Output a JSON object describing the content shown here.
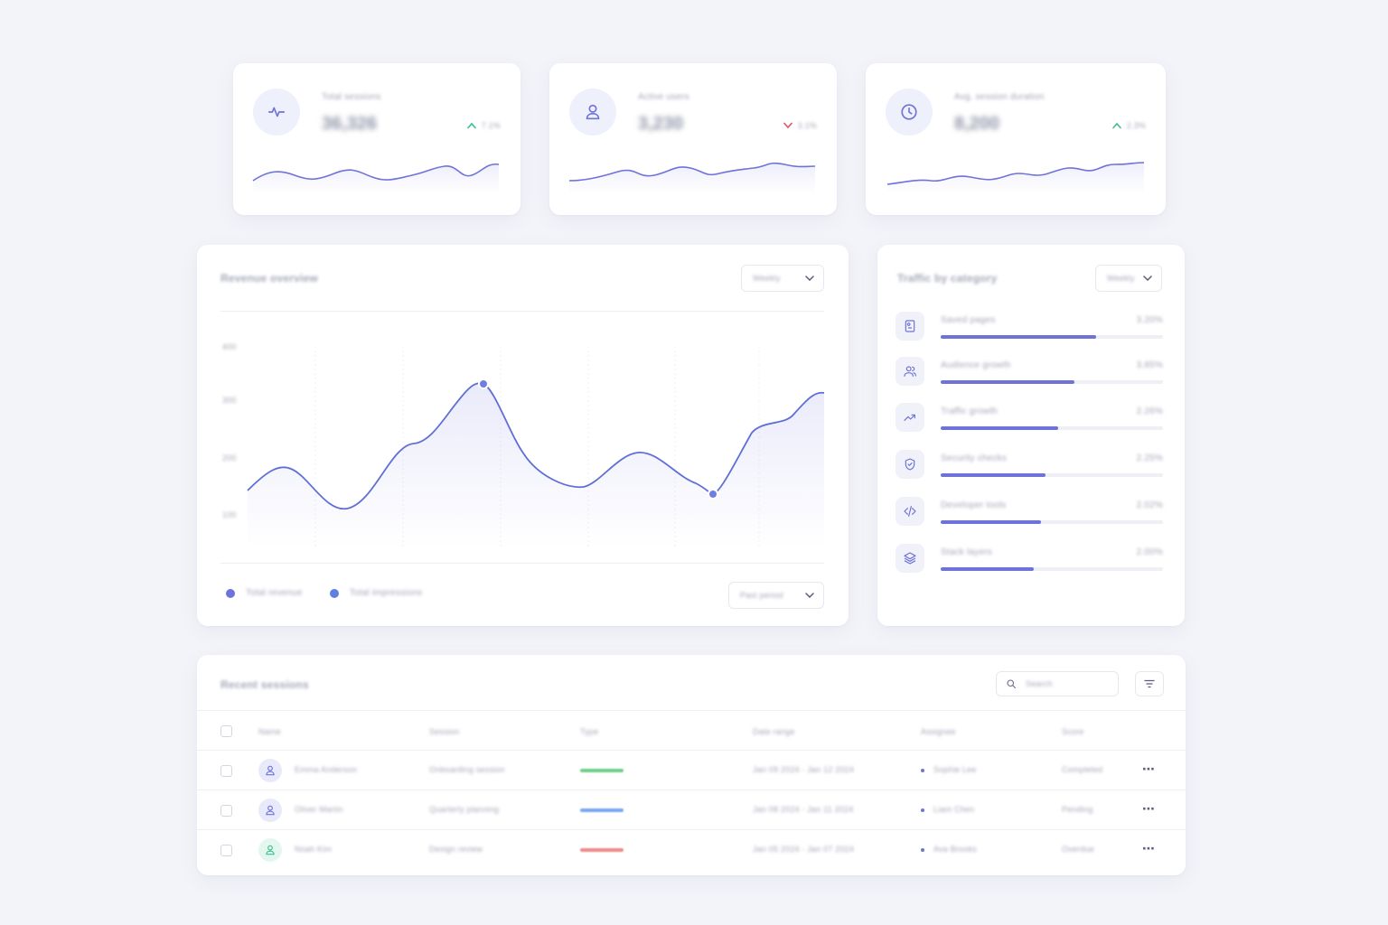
{
  "colors": {
    "accent": "#6f72d9",
    "accent_line": "#5f6fd6",
    "trend_up": "#3fbf8a",
    "trend_down": "#e0566b",
    "status_green": "#6fd08a",
    "status_blue": "#7aa8f2",
    "status_red": "#f08a8a"
  },
  "stats": [
    {
      "label": "Total sessions",
      "value": "36,326",
      "trend": "up",
      "delta": "7.1%",
      "icon": "activity-icon"
    },
    {
      "label": "Active users",
      "value": "3,230",
      "trend": "down",
      "delta": "3.1%",
      "icon": "user-icon"
    },
    {
      "label": "Avg. session duration",
      "value": "8,200",
      "trend": "up",
      "delta": "2.3%",
      "icon": "clock-icon"
    }
  ],
  "main_chart": {
    "title": "Revenue overview",
    "period_select": "Weekly",
    "compare_select": "Past period",
    "legend": [
      {
        "label": "Total revenue",
        "color": "#6f72d9"
      },
      {
        "label": "Total impressions",
        "color": "#5f7fe0"
      }
    ],
    "y_ticks": [
      "400",
      "300",
      "200",
      "100"
    ]
  },
  "categories_panel": {
    "title": "Traffic by category",
    "period_select": "Weekly",
    "items": [
      {
        "icon": "bookmark-icon",
        "label": "Saved pages",
        "pct": "3.20%",
        "fill": 0.7
      },
      {
        "icon": "users-icon",
        "label": "Audience growth",
        "pct": "3.85%",
        "fill": 0.6
      },
      {
        "icon": "trending-up-icon",
        "label": "Traffic growth",
        "pct": "2.26%",
        "fill": 0.53
      },
      {
        "icon": "shield-icon",
        "label": "Security checks",
        "pct": "2.25%",
        "fill": 0.47
      },
      {
        "icon": "code-icon",
        "label": "Developer tools",
        "pct": "2.02%",
        "fill": 0.45
      },
      {
        "icon": "layers-icon",
        "label": "Stack layers",
        "pct": "2.00%",
        "fill": 0.42
      }
    ]
  },
  "table": {
    "title": "Recent sessions",
    "search_placeholder": "Search",
    "headers": [
      "Name",
      "Session",
      "Type",
      "Date range",
      "Assignee",
      "Score"
    ],
    "rows": [
      {
        "name": "Emma Anderson",
        "session": "Onboarding session",
        "status_color": "#6fd08a",
        "date": "Jan 09 2024 - Jan 12 2024",
        "assignee": "Sophie Lee",
        "score": "Completed",
        "avatar_bg": "#e8e9fb",
        "avatar_color": "#6f72d9"
      },
      {
        "name": "Oliver Martin",
        "session": "Quarterly planning",
        "status_color": "#7aa8f2",
        "date": "Jan 08 2024 - Jan 11 2024",
        "assignee": "Liam Chen",
        "score": "Pending",
        "avatar_bg": "#e8e9fb",
        "avatar_color": "#6f72d9"
      },
      {
        "name": "Noah Kim",
        "session": "Design review",
        "status_color": "#f08a8a",
        "date": "Jan 05 2024 - Jan 07 2024",
        "assignee": "Ava Brooks",
        "score": "Overdue",
        "avatar_bg": "#e3f7f0",
        "avatar_color": "#3fbf8a"
      }
    ]
  }
}
